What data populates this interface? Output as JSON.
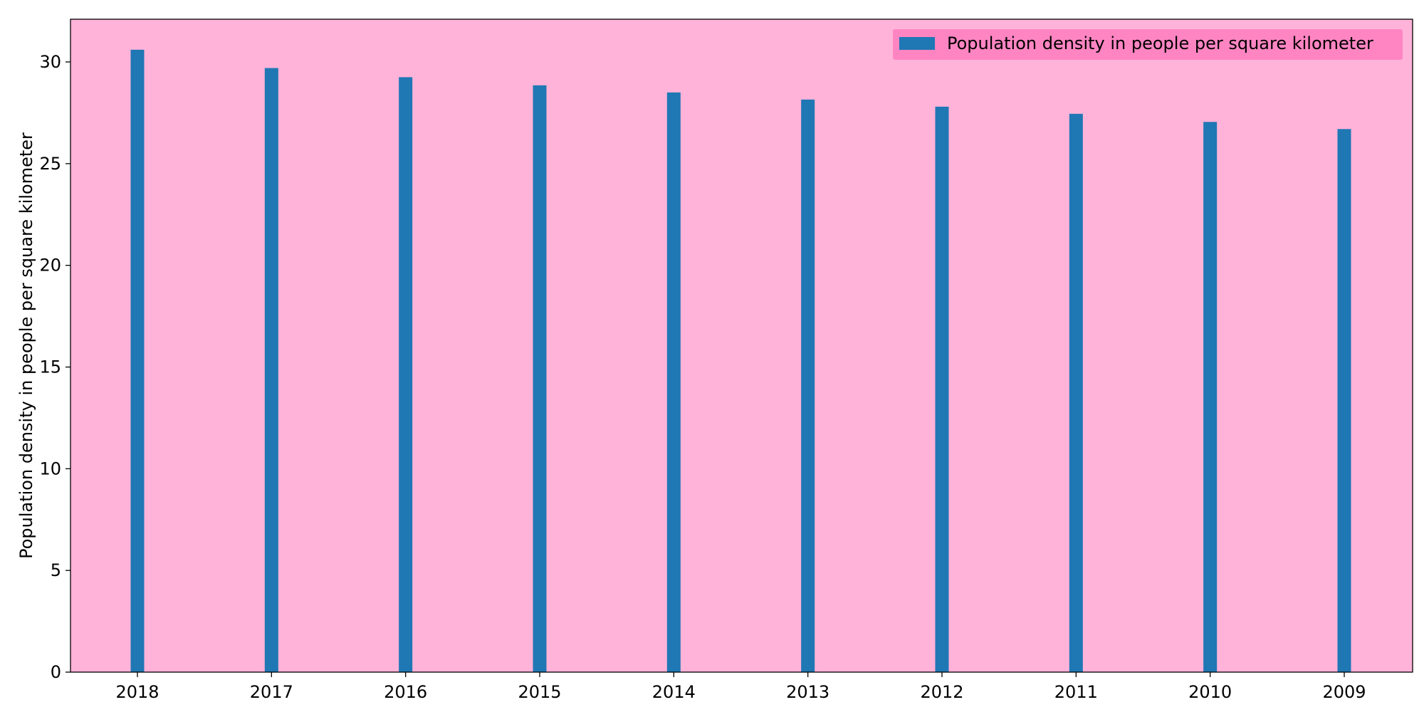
{
  "chart_data": {
    "type": "bar",
    "categories": [
      "2018",
      "2017",
      "2016",
      "2015",
      "2014",
      "2013",
      "2012",
      "2011",
      "2010",
      "2009"
    ],
    "series": [
      {
        "name": "Population density in people per square kilometer",
        "values": [
          30.6,
          29.7,
          29.25,
          28.85,
          28.5,
          28.15,
          27.8,
          27.45,
          27.05,
          26.7
        ]
      }
    ],
    "title": "",
    "xlabel": "",
    "ylabel": "Population density in people per square kilometer",
    "ylim": [
      0,
      32.1
    ],
    "yticks": [
      0,
      5,
      10,
      15,
      20,
      25,
      30
    ],
    "grid": false,
    "legend_position": "top-right",
    "colors": {
      "bar": "#1f77b4",
      "plot_background": "#ffb3d9",
      "legend_background": "#ff7fbf",
      "axis": "#000000"
    }
  }
}
